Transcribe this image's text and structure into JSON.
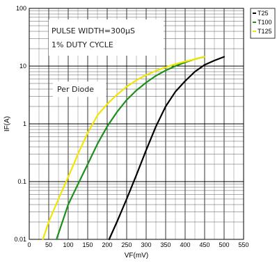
{
  "chart_data": {
    "type": "line",
    "xlabel": "VF(mV)",
    "ylabel": "IF(A)",
    "xlim": [
      0,
      550
    ],
    "ylim": [
      0.01,
      100
    ],
    "yscale": "log",
    "x_ticks": [
      "0",
      "50",
      "100",
      "150",
      "200",
      "250",
      "300",
      "350",
      "400",
      "450",
      "500",
      "550"
    ],
    "y_ticks": [
      "0.01",
      "0.1",
      "1",
      "10",
      "100"
    ],
    "grid": true,
    "legend_position": "outside-right-top",
    "annotations": [
      "PULSE WIDTH=300µS",
      "1% DUTY CYCLE",
      "Per Diode"
    ],
    "series": [
      {
        "name": "T25",
        "color": "#000000",
        "points": [
          [
            205,
            0.01
          ],
          [
            225,
            0.02
          ],
          [
            250,
            0.05
          ],
          [
            275,
            0.13
          ],
          [
            300,
            0.35
          ],
          [
            325,
            0.9
          ],
          [
            350,
            2.0
          ],
          [
            375,
            3.6
          ],
          [
            400,
            5.5
          ],
          [
            425,
            8
          ],
          [
            450,
            10.5
          ],
          [
            475,
            12.5
          ],
          [
            500,
            14.5
          ]
        ]
      },
      {
        "name": "T100",
        "color": "#1a8f1a",
        "points": [
          [
            70,
            0.01
          ],
          [
            85,
            0.02
          ],
          [
            100,
            0.04
          ],
          [
            125,
            0.09
          ],
          [
            150,
            0.2
          ],
          [
            175,
            0.45
          ],
          [
            200,
            0.9
          ],
          [
            225,
            1.6
          ],
          [
            250,
            2.6
          ],
          [
            275,
            3.8
          ],
          [
            300,
            5.2
          ],
          [
            325,
            6.8
          ],
          [
            350,
            8.4
          ],
          [
            375,
            10
          ],
          [
            400,
            11.6
          ],
          [
            425,
            13.2
          ],
          [
            450,
            14.5
          ]
        ]
      },
      {
        "name": "T125",
        "color": "#f2e600",
        "points": [
          [
            35,
            0.01
          ],
          [
            50,
            0.02
          ],
          [
            75,
            0.05
          ],
          [
            100,
            0.12
          ],
          [
            125,
            0.3
          ],
          [
            150,
            0.7
          ],
          [
            175,
            1.4
          ],
          [
            200,
            2.2
          ],
          [
            225,
            3.2
          ],
          [
            250,
            4.4
          ],
          [
            275,
            5.7
          ],
          [
            300,
            7.0
          ],
          [
            325,
            8.3
          ],
          [
            350,
            9.5
          ],
          [
            375,
            10.8
          ],
          [
            400,
            12.0
          ],
          [
            425,
            13.2
          ],
          [
            450,
            14.5
          ]
        ]
      }
    ]
  }
}
